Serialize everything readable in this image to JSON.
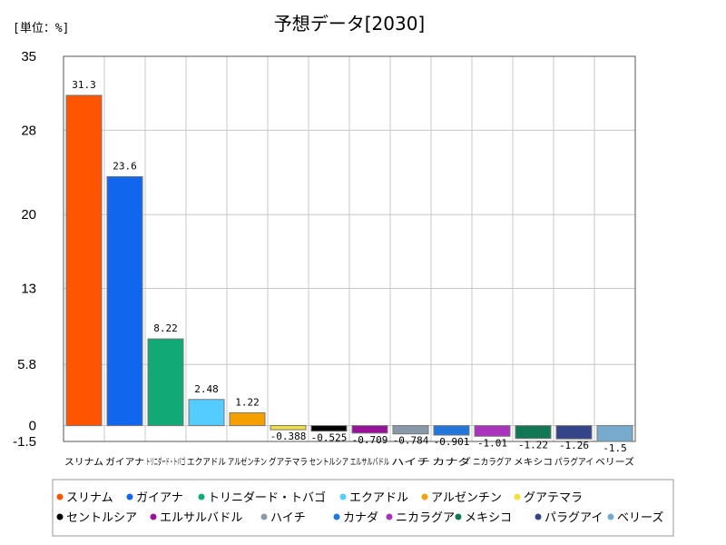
{
  "chart_data": {
    "type": "bar",
    "title": "予想データ[2030]",
    "unit_label": "[単位：%]",
    "ylim": [
      -1.5,
      35
    ],
    "yticks": [
      {
        "value": 35,
        "label": "35"
      },
      {
        "value": 28,
        "label": "28"
      },
      {
        "value": 20,
        "label": "20"
      },
      {
        "value": 13,
        "label": "13"
      },
      {
        "value": 5.8,
        "label": "5.8"
      },
      {
        "value": 0,
        "label": "0"
      },
      {
        "value": -1.5,
        "label": "-1.5"
      }
    ],
    "grid": true,
    "legend_position": "bottom",
    "categories": [
      "スリナム",
      "ガイアナ",
      "トリニダード・トバゴ",
      "エクアドル",
      "アルゼンチン",
      "グアテマラ",
      "セントルシア",
      "エルサルバドル",
      "ハイチ",
      "カナダ",
      "ニカラグア",
      "メキシコ",
      "パラグアイ",
      "ベリーズ"
    ],
    "values": [
      31.3,
      23.6,
      8.22,
      2.48,
      1.22,
      -0.388,
      -0.525,
      -0.709,
      -0.784,
      -0.901,
      -1.01,
      -1.22,
      -1.26,
      -1.5
    ],
    "value_labels": [
      "31.3",
      "23.6",
      "8.22",
      "2.48",
      "1.22",
      "-0.388",
      "-0.525",
      "-0.709",
      "-0.784",
      "-0.901",
      "-1.01",
      "-1.22",
      "-1.26",
      "-1.5"
    ],
    "colors": [
      "#ff5500",
      "#1166ee",
      "#11aa77",
      "#55ccff",
      "#f5a000",
      "#f0e040",
      "#000000",
      "#991199",
      "#8899aa",
      "#2277dd",
      "#aa33bb",
      "#117755",
      "#334488",
      "#77aacc"
    ]
  }
}
